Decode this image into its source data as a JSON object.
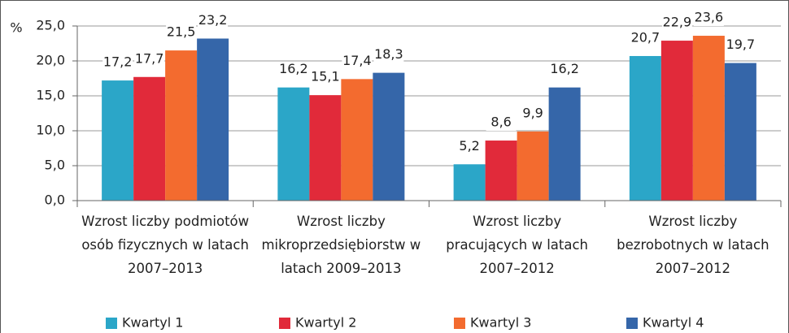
{
  "chart_data": {
    "type": "bar",
    "y_axis_label": "%",
    "categories": [
      "Wzrost liczby podmiotów osób fizycznych w latach 2007–2013",
      "Wzrost liczby mikroprzedsiębiorstw w latach 2009–2013",
      "Wzrost liczby pracujących w latach 2007–2012",
      "Wzrost liczby bezrobotnych w latach 2007–2012"
    ],
    "series": [
      {
        "name": "Kwartyl 1",
        "color": "#2ba6c8",
        "values": [
          17.2,
          16.2,
          5.2,
          20.7
        ],
        "value_labels": [
          "17,2",
          "16,2",
          "5,2",
          "20,7"
        ]
      },
      {
        "name": "Kwartyl 2",
        "color": "#e12a3a",
        "values": [
          17.7,
          15.1,
          8.6,
          22.9
        ],
        "value_labels": [
          "17,7",
          "15,1",
          "8,6",
          "22,9"
        ]
      },
      {
        "name": "Kwartyl 3",
        "color": "#f36b2f",
        "values": [
          21.5,
          17.4,
          9.9,
          23.6
        ],
        "value_labels": [
          "21,5",
          "17,4",
          "9,9",
          "23,6"
        ]
      },
      {
        "name": "Kwartyl 4",
        "color": "#3566a9",
        "values": [
          23.2,
          18.3,
          16.2,
          19.7
        ],
        "value_labels": [
          "23,2",
          "18,3",
          "16,2",
          "19,7"
        ]
      }
    ],
    "ylim": [
      0,
      25
    ],
    "yticks": [
      {
        "value": 0,
        "label": "0,0"
      },
      {
        "value": 5,
        "label": "5,0"
      },
      {
        "value": 10,
        "label": "10,0"
      },
      {
        "value": 15,
        "label": "15,0"
      },
      {
        "value": 20,
        "label": "20,0"
      },
      {
        "value": 25,
        "label": "25,0"
      }
    ],
    "grid": true,
    "legend": "bottom"
  }
}
